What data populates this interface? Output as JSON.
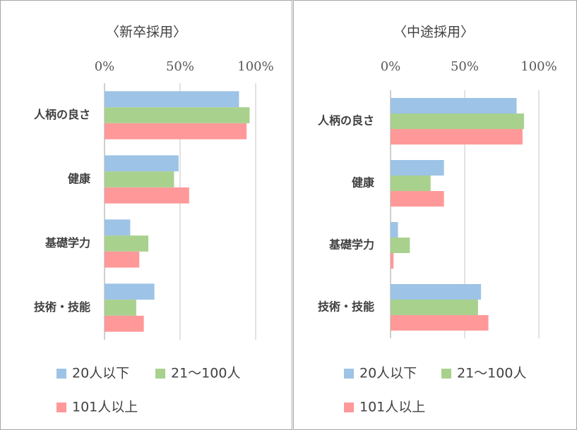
{
  "chart_data": [
    {
      "type": "bar",
      "orientation": "horizontal",
      "title": "〈新卒採用〉",
      "categories": [
        "人柄の良さ",
        "健康",
        "基礎学力",
        "技術・技能"
      ],
      "series": [
        {
          "name": "20人以下",
          "color": "#9dc3e6",
          "values": [
            89,
            49,
            17,
            33
          ]
        },
        {
          "name": "21〜100人",
          "color": "#a9d18e",
          "values": [
            96,
            46,
            29,
            21
          ]
        },
        {
          "name": "101人以上",
          "color": "#ff9999",
          "values": [
            94,
            56,
            23,
            26
          ]
        }
      ],
      "xlim": [
        0,
        100
      ],
      "xticks": [
        {
          "value": 0,
          "label": "0%"
        },
        {
          "value": 50,
          "label": "50%"
        },
        {
          "value": 100,
          "label": "100%"
        }
      ],
      "grid": true,
      "legend": "bottom"
    },
    {
      "type": "bar",
      "orientation": "horizontal",
      "title": "〈中途採用〉",
      "categories": [
        "人柄の良さ",
        "健康",
        "基礎学力",
        "技術・技能"
      ],
      "series": [
        {
          "name": "20人以下",
          "color": "#9dc3e6",
          "values": [
            85,
            36,
            5,
            61
          ]
        },
        {
          "name": "21〜100人",
          "color": "#a9d18e",
          "values": [
            90,
            27,
            13,
            59
          ]
        },
        {
          "name": "101人以上",
          "color": "#ff9999",
          "values": [
            89,
            36,
            2,
            66
          ]
        }
      ],
      "xlim": [
        0,
        100
      ],
      "xticks": [
        {
          "value": 0,
          "label": "0%"
        },
        {
          "value": 50,
          "label": "50%"
        },
        {
          "value": 100,
          "label": "100%"
        }
      ],
      "grid": true,
      "legend": "bottom"
    }
  ]
}
